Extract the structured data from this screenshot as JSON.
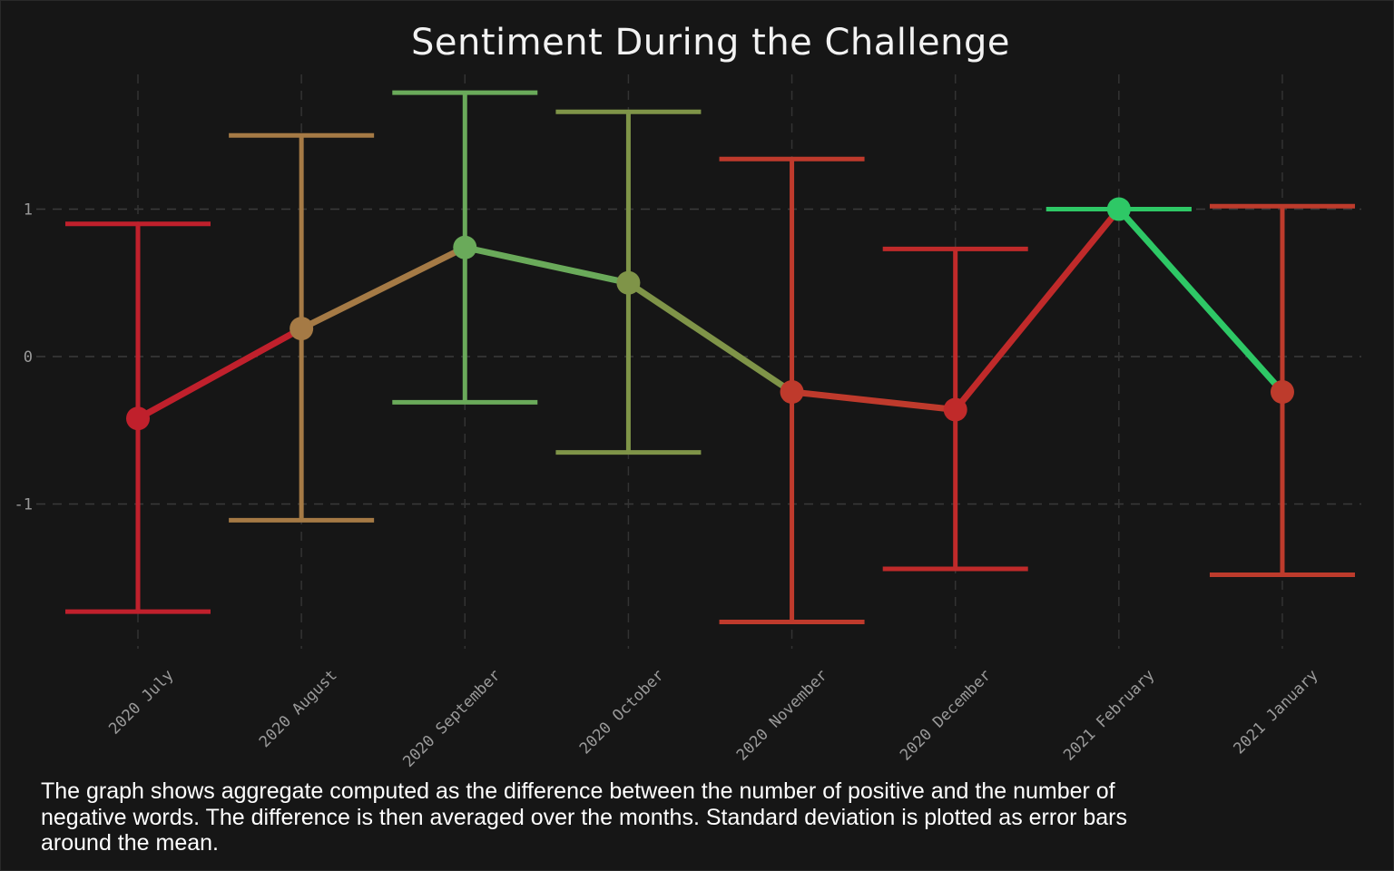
{
  "chart_data": {
    "type": "line",
    "title": "Sentiment During the Challenge",
    "xlabel": "",
    "ylabel": "",
    "categories": [
      "2020 July",
      "2020 August",
      "2020 September",
      "2020 October",
      "2020 November",
      "2020 December",
      "2021 February",
      "2021 January"
    ],
    "ylim": [
      -2.0,
      1.9
    ],
    "yticks": [
      1,
      0,
      -1
    ],
    "grid": true,
    "series": [
      {
        "values": [
          -0.42,
          0.19,
          0.74,
          0.5,
          -0.24,
          -0.36,
          1.0,
          -0.24
        ],
        "error_low": [
          -1.73,
          -1.11,
          -0.31,
          -0.65,
          -1.8,
          -1.44,
          1.0,
          -1.48
        ],
        "error_high": [
          0.9,
          1.5,
          1.79,
          1.66,
          1.34,
          0.73,
          1.0,
          1.02
        ],
        "colors": [
          "#c0202c",
          "#a57a45",
          "#6aaa5a",
          "#7f9448",
          "#bf3a2c",
          "#c02a2a",
          "#2ec866",
          "#bd3b2c"
        ]
      }
    ]
  },
  "caption": "The graph shows aggregate computed as the difference between the number of positive and the number of negative words. The difference is then averaged over the months. Standard deviation is plotted as error bars around the mean."
}
